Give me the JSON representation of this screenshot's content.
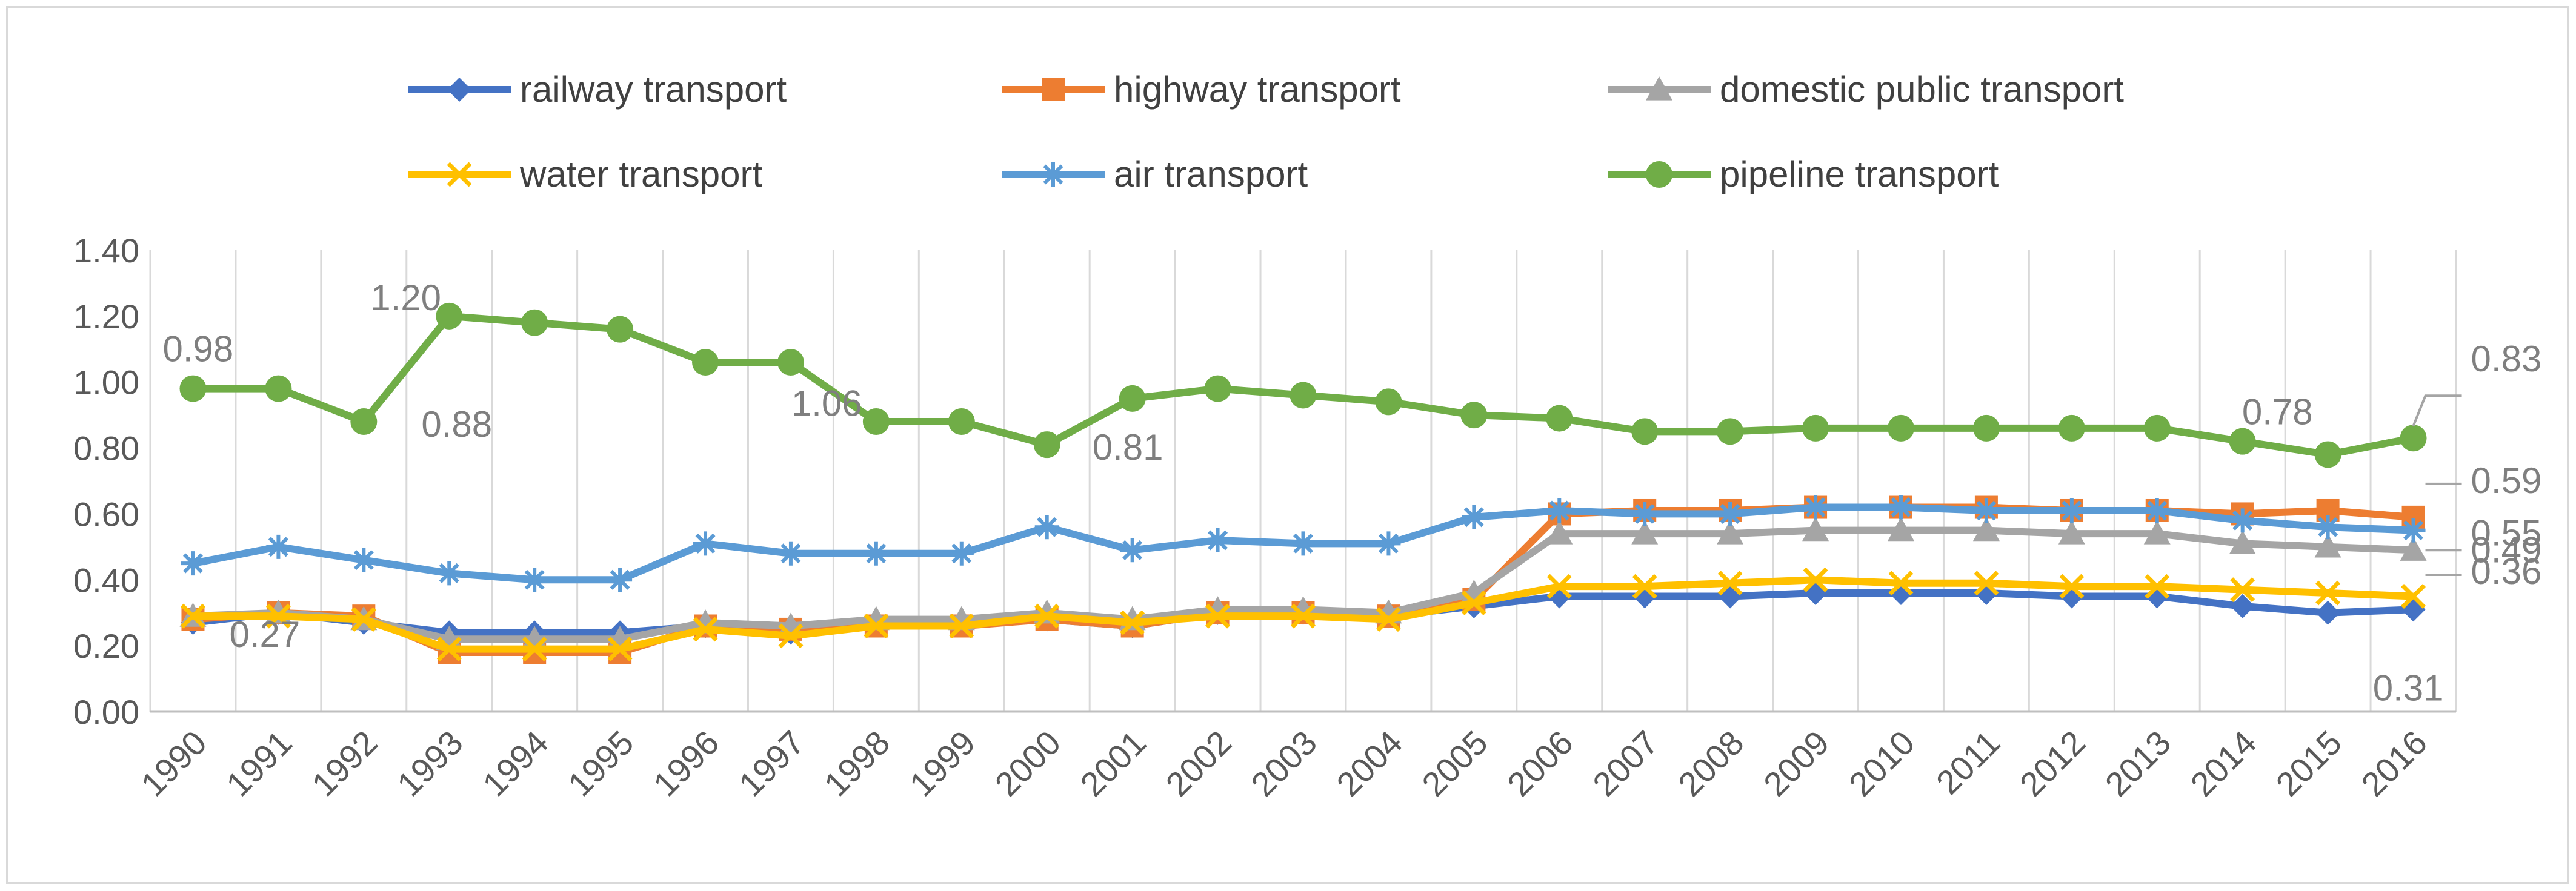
{
  "chart_data": {
    "type": "line",
    "title": "",
    "xlabel": "",
    "ylabel": "",
    "ylim": [
      0,
      1.4
    ],
    "yticks": [
      "0.00",
      "0.20",
      "0.40",
      "0.60",
      "0.80",
      "1.00",
      "1.20",
      "1.40"
    ],
    "grid": "vertical",
    "legend_position": "top",
    "categories": [
      "1990",
      "1991",
      "1992",
      "1993",
      "1994",
      "1995",
      "1996",
      "1997",
      "1998",
      "1999",
      "2000",
      "2001",
      "2002",
      "2003",
      "2004",
      "2005",
      "2006",
      "2007",
      "2008",
      "2009",
      "2010",
      "2011",
      "2012",
      "2013",
      "2014",
      "2015",
      "2016"
    ],
    "series": [
      {
        "name": "railway transport",
        "color": "#4472c4",
        "marker": "diamond",
        "values": [
          0.27,
          0.3,
          0.27,
          0.24,
          0.24,
          0.24,
          0.26,
          0.24,
          0.27,
          0.27,
          0.28,
          0.26,
          0.3,
          0.3,
          0.29,
          0.32,
          0.35,
          0.35,
          0.35,
          0.36,
          0.36,
          0.36,
          0.35,
          0.35,
          0.32,
          0.3,
          0.31
        ]
      },
      {
        "name": "highway transport",
        "color": "#ed7d31",
        "marker": "square",
        "values": [
          0.28,
          0.3,
          0.29,
          0.18,
          0.18,
          0.18,
          0.26,
          0.25,
          0.26,
          0.26,
          0.28,
          0.26,
          0.3,
          0.3,
          0.29,
          0.34,
          0.6,
          0.61,
          0.61,
          0.62,
          0.62,
          0.62,
          0.61,
          0.61,
          0.6,
          0.61,
          0.59
        ]
      },
      {
        "name": "domestic public transport",
        "color": "#a5a5a5",
        "marker": "triangle",
        "values": [
          0.29,
          0.3,
          0.28,
          0.22,
          0.22,
          0.22,
          0.27,
          0.26,
          0.28,
          0.28,
          0.3,
          0.28,
          0.31,
          0.31,
          0.3,
          0.36,
          0.54,
          0.54,
          0.54,
          0.55,
          0.55,
          0.55,
          0.54,
          0.54,
          0.51,
          0.5,
          0.49
        ]
      },
      {
        "name": "water transport",
        "color": "#ffc000",
        "marker": "x",
        "values": [
          0.29,
          0.29,
          0.28,
          0.19,
          0.19,
          0.19,
          0.25,
          0.23,
          0.26,
          0.26,
          0.29,
          0.27,
          0.29,
          0.29,
          0.28,
          0.33,
          0.38,
          0.38,
          0.39,
          0.4,
          0.39,
          0.39,
          0.38,
          0.38,
          0.37,
          0.36,
          0.35
        ]
      },
      {
        "name": "air transport",
        "color": "#5b9bd5",
        "marker": "star",
        "values": [
          0.45,
          0.5,
          0.46,
          0.42,
          0.4,
          0.4,
          0.51,
          0.48,
          0.48,
          0.48,
          0.56,
          0.49,
          0.52,
          0.51,
          0.51,
          0.59,
          0.61,
          0.6,
          0.6,
          0.62,
          0.62,
          0.61,
          0.61,
          0.61,
          0.58,
          0.56,
          0.55
        ]
      },
      {
        "name": "pipeline transport",
        "color": "#70ad47",
        "marker": "circle",
        "values": [
          0.98,
          0.98,
          0.88,
          1.2,
          1.18,
          1.16,
          1.06,
          1.06,
          0.88,
          0.88,
          0.81,
          0.95,
          0.98,
          0.96,
          0.94,
          0.9,
          0.89,
          0.85,
          0.85,
          0.86,
          0.86,
          0.86,
          0.86,
          0.86,
          0.82,
          0.78,
          0.83
        ]
      }
    ],
    "annotations": [
      "0.98",
      "1.20",
      "0.88",
      "1.06",
      "0.81",
      "0.78",
      "0.83",
      "0.59",
      "0.55",
      "0.49",
      "0.36",
      "0.31",
      "0.27"
    ]
  }
}
